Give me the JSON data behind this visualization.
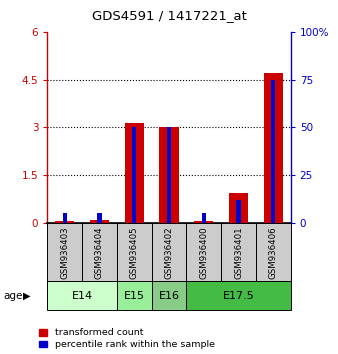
{
  "title": "GDS4591 / 1417221_at",
  "samples": [
    "GSM936403",
    "GSM936404",
    "GSM936405",
    "GSM936402",
    "GSM936400",
    "GSM936401",
    "GSM936406"
  ],
  "transformed_counts": [
    0.05,
    0.08,
    3.15,
    3.02,
    0.05,
    0.95,
    4.72
  ],
  "percentile_ranks": [
    5,
    5,
    50,
    50,
    5,
    12,
    75
  ],
  "age_groups": [
    {
      "label": "E14",
      "samples": [
        "GSM936403",
        "GSM936404"
      ],
      "color": "#ccffcc"
    },
    {
      "label": "E15",
      "samples": [
        "GSM936405"
      ],
      "color": "#99ee99"
    },
    {
      "label": "E16",
      "samples": [
        "GSM936402"
      ],
      "color": "#88cc88"
    },
    {
      "label": "E17.5",
      "samples": [
        "GSM936400",
        "GSM936401",
        "GSM936406"
      ],
      "color": "#44bb44"
    }
  ],
  "ylim_left": [
    0,
    6
  ],
  "ylim_right": [
    0,
    100
  ],
  "yticks_left": [
    0,
    1.5,
    3.0,
    4.5,
    6.0
  ],
  "ytick_labels_left": [
    "0",
    "1.5",
    "3",
    "4.5",
    "6"
  ],
  "yticks_right": [
    0,
    25,
    50,
    75,
    100
  ],
  "ytick_labels_right": [
    "0",
    "25",
    "50",
    "75",
    "100%"
  ],
  "red_bar_width": 0.55,
  "blue_bar_width": 0.12,
  "red_color": "#cc0000",
  "blue_color": "#0000cc",
  "sample_bg_color": "#cccccc",
  "legend_red": "transformed count",
  "legend_blue": "percentile rank within the sample",
  "age_label": "age",
  "dotted_yticks": [
    1.5,
    3.0,
    4.5
  ]
}
